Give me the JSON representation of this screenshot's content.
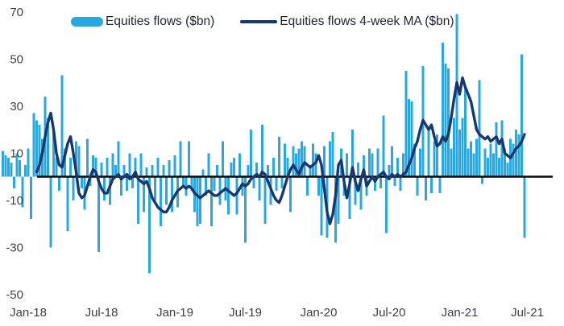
{
  "chart_data": {
    "type": "bar",
    "title": "",
    "xlabel": "",
    "ylabel": "",
    "x_unit": "weekly observations, Jan-2018 to Jul-2021",
    "ylim": [
      -50,
      70
    ],
    "y_ticks": [
      70,
      50,
      30,
      10,
      -10,
      -30,
      -50
    ],
    "x_tick_labels": [
      "Jan-18",
      "Jul-18",
      "Jan-19",
      "Jul-19",
      "Jan-20",
      "Jul-20",
      "Jan-21",
      "Jul-21"
    ],
    "x_tick_weeks": [
      9,
      35,
      61,
      86,
      112,
      137,
      162,
      186
    ],
    "grid": false,
    "legend_position": "top",
    "zero_line": true,
    "series": [
      {
        "name": "Equities flows ($bn)",
        "type": "bar",
        "color": "#29A8E0",
        "values": [
          11,
          9,
          8,
          6,
          -5,
          10,
          7,
          -13,
          5,
          12,
          -18,
          27,
          24,
          22,
          16,
          34,
          25,
          -30,
          20,
          8,
          -6,
          43,
          12,
          -23,
          8,
          -10,
          15,
          13,
          -5,
          -14,
          16,
          -4,
          9,
          8,
          -32,
          6,
          -10,
          8,
          -12,
          10,
          5,
          15,
          -8,
          5,
          -6,
          10,
          -5,
          8,
          -20,
          10,
          -15,
          4,
          -41,
          5,
          -10,
          8,
          -21,
          5,
          -12,
          7,
          -15,
          9,
          -13,
          15,
          -4,
          -8,
          15,
          -6,
          -15,
          -21,
          -20,
          3,
          -8,
          10,
          -21,
          -6,
          5,
          -12,
          15,
          -10,
          -16,
          6,
          8,
          -16,
          10,
          -8,
          -28,
          5,
          20,
          -5,
          6,
          -10,
          22,
          -20,
          5,
          -12,
          8,
          -6,
          17,
          -5,
          14,
          8,
          -15,
          13,
          10,
          12,
          15,
          13,
          -8,
          5,
          14,
          10,
          -8,
          -25,
          13,
          -26,
          15,
          19,
          -28,
          -20,
          12,
          -8,
          10,
          -18,
          20,
          -12,
          6,
          -14,
          9,
          -8,
          12,
          10,
          -6,
          12,
          -5,
          26,
          -24,
          5,
          13,
          -4,
          8,
          -6,
          10,
          45,
          33,
          32,
          14,
          -8,
          12,
          47,
          -10,
          20,
          -7,
          15,
          18,
          -7,
          57,
          48,
          46,
          12,
          25,
          69,
          20,
          25,
          38,
          12,
          15,
          10,
          16,
          41,
          -3,
          12,
          8,
          14,
          10,
          23,
          8,
          24,
          12,
          6,
          16,
          14,
          20,
          18,
          52,
          -26
        ]
      },
      {
        "name": "Equities flows 4-week MA ($bn)",
        "type": "line",
        "color": "#16386F",
        "values": [
          null,
          null,
          null,
          null,
          null,
          null,
          null,
          null,
          null,
          null,
          null,
          null,
          2,
          5,
          10,
          17,
          23,
          27,
          20,
          10,
          5,
          4,
          9,
          14,
          17,
          10,
          2,
          -7,
          -9,
          -8,
          -4,
          0,
          3,
          2,
          -2,
          -5,
          -7,
          -7,
          -4,
          -1,
          0,
          1,
          -1,
          0,
          1,
          -1,
          0,
          2,
          -1,
          -2,
          -3,
          -2,
          -5,
          -9,
          -11,
          -13,
          -14,
          -15,
          -15,
          -13,
          -10,
          -8,
          -6,
          -5,
          -4,
          -5,
          -4,
          -5,
          -7,
          -8,
          -9,
          -8,
          -7,
          -6,
          -7,
          -8,
          -8,
          -7,
          -6,
          -5,
          -6,
          -7,
          -8,
          -7,
          -5,
          -3,
          -4,
          -3,
          -1,
          0,
          1,
          0,
          2,
          1,
          -2,
          -5,
          -8,
          -10,
          -11,
          -8,
          -4,
          0,
          3,
          5,
          3,
          1,
          4,
          6,
          5,
          4,
          5,
          6,
          9,
          5,
          -5,
          -15,
          -20,
          -16,
          -8,
          5,
          7,
          -2,
          -9,
          -3,
          4,
          -2,
          -6,
          -1,
          3,
          -4,
          -2,
          0,
          -2,
          0,
          1,
          2,
          0,
          -1,
          1,
          0,
          1,
          0,
          1,
          2,
          5,
          8,
          12,
          15,
          20,
          24,
          22,
          20,
          22,
          17,
          13,
          14,
          17,
          15,
          18,
          25,
          33,
          40,
          35,
          42,
          38,
          35,
          32,
          26,
          20,
          18,
          17,
          16,
          17,
          15,
          16,
          17,
          14,
          16,
          10,
          9,
          8,
          10,
          12,
          13,
          15,
          18
        ]
      }
    ]
  },
  "legend": {
    "bar_label": "Equities flows ($bn)",
    "line_label": "Equities flows 4-week MA ($bn)"
  },
  "colors": {
    "bar": "#29A8E0",
    "line": "#16386F",
    "axis": "#0a0a0a",
    "tick_text": "#3f3f45"
  }
}
